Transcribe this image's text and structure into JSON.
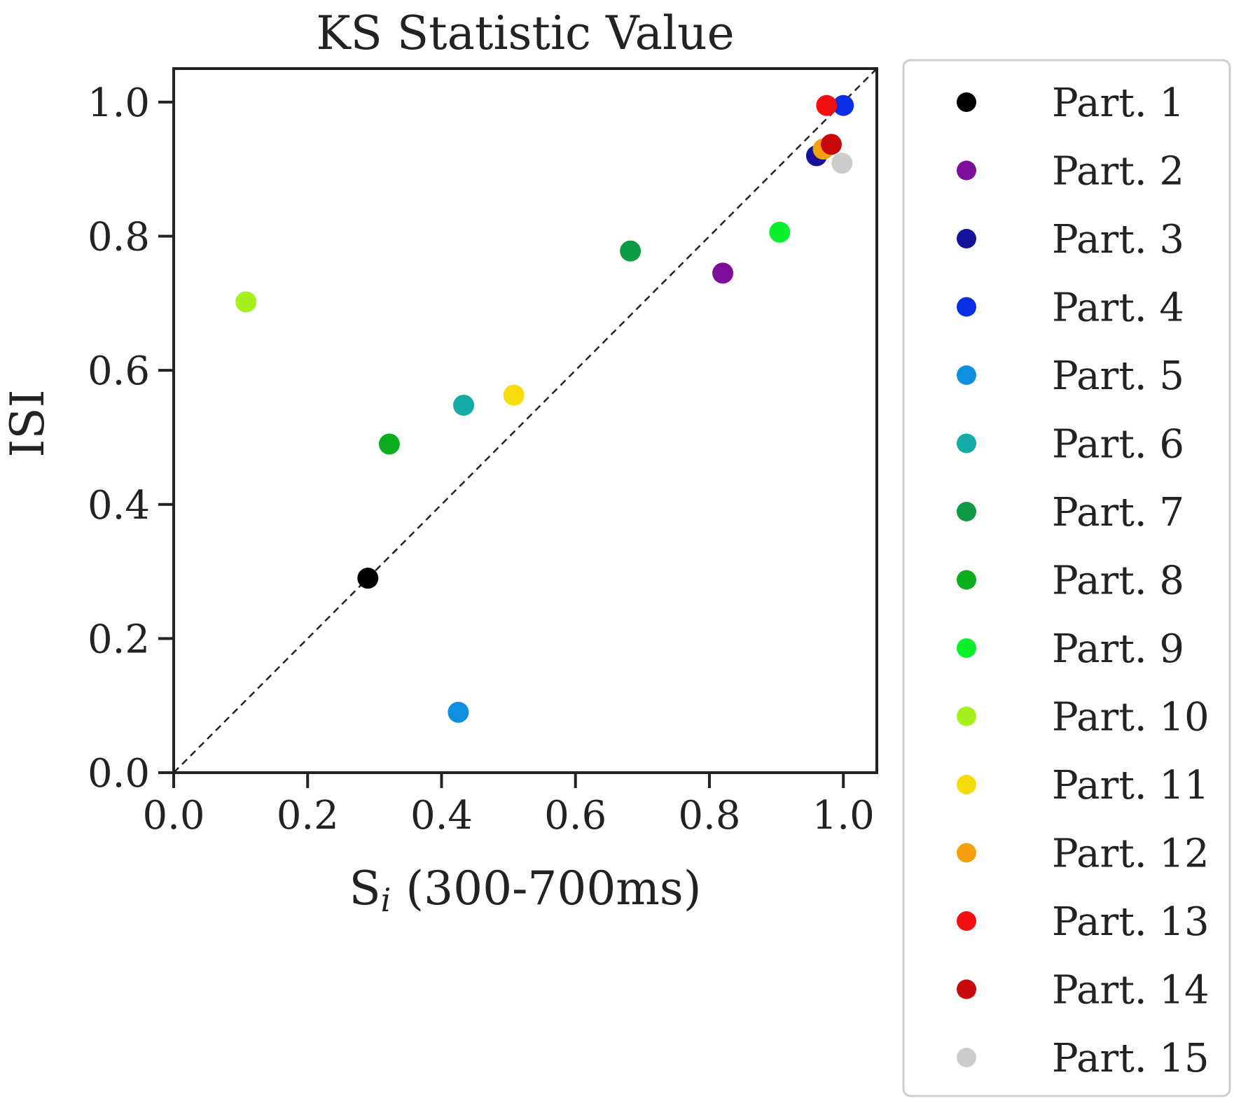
{
  "chart_data": {
    "type": "scatter",
    "title": "KS Statistic Value",
    "xlabel_main": "S",
    "xlabel_sub": "i",
    "xlabel_rest": " (300-700ms)",
    "ylabel": "ISI",
    "xlim": [
      0.0,
      1.05
    ],
    "ylim": [
      0.0,
      1.05
    ],
    "xticks": [
      "0.0",
      "0.2",
      "0.4",
      "0.6",
      "0.8",
      "1.0"
    ],
    "yticks": [
      "0.0",
      "0.2",
      "0.4",
      "0.6",
      "0.8",
      "1.0"
    ],
    "diagonal": {
      "from": [
        0,
        0
      ],
      "to": [
        1.05,
        1.05
      ],
      "style": "dashed",
      "color": "#222222"
    },
    "legend_position": "outside-right",
    "series": [
      {
        "name": "Part. 1",
        "color": "#000000",
        "x": 0.29,
        "y": 0.29
      },
      {
        "name": "Part. 2",
        "color": "#7d0e99",
        "x": 0.82,
        "y": 0.745
      },
      {
        "name": "Part. 3",
        "color": "#16129c",
        "x": 0.96,
        "y": 0.92
      },
      {
        "name": "Part. 4",
        "color": "#0a2ee6",
        "x": 1.0,
        "y": 0.995
      },
      {
        "name": "Part. 5",
        "color": "#0f8fe0",
        "x": 0.425,
        "y": 0.09
      },
      {
        "name": "Part. 6",
        "color": "#14aaa6",
        "x": 0.433,
        "y": 0.548
      },
      {
        "name": "Part. 7",
        "color": "#0f9a44",
        "x": 0.682,
        "y": 0.778
      },
      {
        "name": "Part. 8",
        "color": "#0aae1e",
        "x": 0.322,
        "y": 0.49
      },
      {
        "name": "Part. 9",
        "color": "#0af02a",
        "x": 0.905,
        "y": 0.806
      },
      {
        "name": "Part. 10",
        "color": "#a6f01e",
        "x": 0.108,
        "y": 0.702
      },
      {
        "name": "Part. 11",
        "color": "#f5dc0a",
        "x": 0.508,
        "y": 0.563
      },
      {
        "name": "Part. 12",
        "color": "#f5a00f",
        "x": 0.97,
        "y": 0.93
      },
      {
        "name": "Part. 13",
        "color": "#f20f0f",
        "x": 0.975,
        "y": 0.995
      },
      {
        "name": "Part. 14",
        "color": "#c80a0a",
        "x": 0.982,
        "y": 0.937
      },
      {
        "name": "Part. 15",
        "color": "#cccccc",
        "x": 0.998,
        "y": 0.909
      }
    ]
  }
}
